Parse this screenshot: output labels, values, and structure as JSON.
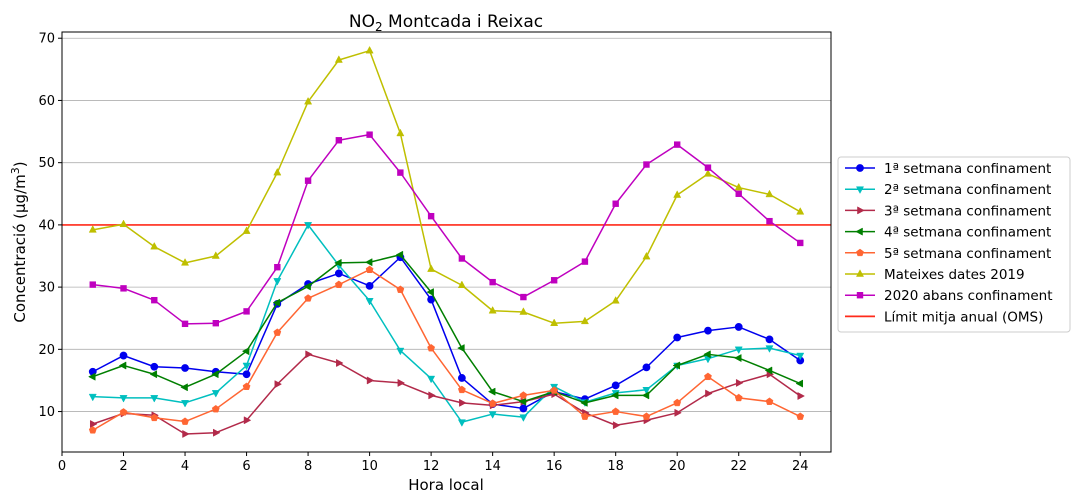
{
  "chart_data": {
    "type": "line",
    "title": "NO",
    "title_sub": "2",
    "title_rest": " Montcada i Reixac",
    "xlabel": "Hora local",
    "ylabel_main": "Concentració (μg/m",
    "ylabel_sup": "3",
    "ylabel_end": ")",
    "xlim": [
      0,
      25
    ],
    "ylim": [
      3.5,
      71
    ],
    "x_ticks": [
      0,
      2,
      4,
      6,
      8,
      10,
      12,
      14,
      16,
      18,
      20,
      22,
      24
    ],
    "y_ticks": [
      10,
      20,
      30,
      40,
      50,
      60,
      70
    ],
    "grid": "horizontal",
    "legend_position": "right",
    "x": [
      1,
      2,
      3,
      4,
      5,
      6,
      7,
      8,
      9,
      10,
      11,
      12,
      13,
      14,
      15,
      16,
      17,
      18,
      19,
      20,
      21,
      22,
      23,
      24
    ],
    "series": [
      {
        "name": "1ª setmana confinament",
        "color": "#0000ee",
        "marker": "circle",
        "values": [
          16.4,
          19.0,
          17.2,
          17.0,
          16.4,
          16.0,
          27.3,
          30.5,
          32.2,
          30.2,
          34.8,
          28.0,
          15.4,
          11.2,
          10.5,
          13.2,
          12.0,
          14.2,
          17.1,
          21.9,
          23.0,
          23.6,
          21.6,
          18.2
        ]
      },
      {
        "name": "2ª setmana confinament",
        "color": "#00bfbf",
        "marker": "triangle-down",
        "values": [
          12.4,
          12.2,
          12.2,
          11.4,
          13.0,
          17.4,
          31.0,
          40.0,
          33.5,
          27.8,
          19.8,
          15.3,
          8.3,
          9.6,
          9.1,
          14.0,
          11.5,
          13.0,
          13.5,
          17.4,
          18.5,
          20.0,
          20.2,
          19.0
        ]
      },
      {
        "name": "3ª setmana confinament",
        "color": "#b22a4a",
        "marker": "triangle-right",
        "values": [
          8.0,
          9.7,
          9.4,
          6.4,
          6.6,
          8.6,
          14.4,
          19.2,
          17.8,
          15.0,
          14.6,
          12.6,
          11.4,
          11.0,
          11.6,
          12.8,
          9.8,
          7.8,
          8.6,
          9.8,
          12.9,
          14.6,
          16.0,
          12.5
        ]
      },
      {
        "name": "4ª setmana confinament",
        "color": "#007f00",
        "marker": "triangle-left",
        "values": [
          15.6,
          17.4,
          16.0,
          13.9,
          16.0,
          19.7,
          27.5,
          30.1,
          33.9,
          34.0,
          35.2,
          29.2,
          20.2,
          13.2,
          11.6,
          13.2,
          11.4,
          12.6,
          12.6,
          17.4,
          19.2,
          18.6,
          16.6,
          14.5
        ]
      },
      {
        "name": "5ª setmana confinament",
        "color": "#ff6633",
        "marker": "pentagon",
        "values": [
          7.0,
          9.9,
          9.0,
          8.4,
          10.4,
          14.0,
          22.7,
          28.2,
          30.4,
          32.8,
          29.6,
          20.2,
          13.5,
          11.3,
          12.6,
          13.4,
          9.2,
          10.0,
          9.2,
          11.4,
          15.6,
          12.2,
          11.6,
          9.2
        ]
      },
      {
        "name": "Mateixes dates 2019",
        "color": "#bfbf00",
        "marker": "triangle-up",
        "values": [
          39.2,
          40.1,
          36.5,
          33.9,
          35.0,
          39.0,
          48.4,
          59.8,
          66.5,
          68.0,
          54.7,
          32.9,
          30.3,
          26.2,
          26.0,
          24.2,
          24.5,
          27.8,
          34.9,
          44.8,
          48.2,
          46.0,
          44.9,
          42.1
        ]
      },
      {
        "name": "2020 abans confinament",
        "color": "#bf00bf",
        "marker": "square",
        "values": [
          30.4,
          29.8,
          27.9,
          24.1,
          24.2,
          26.1,
          33.2,
          47.1,
          53.6,
          54.5,
          48.4,
          41.4,
          34.6,
          30.8,
          28.4,
          31.1,
          34.1,
          43.4,
          49.7,
          52.9,
          49.2,
          45.0,
          40.6,
          37.1
        ]
      }
    ],
    "reference_line": {
      "name": "Límit mitja anual (OMS)",
      "value": 40,
      "color": "#ff2a1a"
    }
  }
}
